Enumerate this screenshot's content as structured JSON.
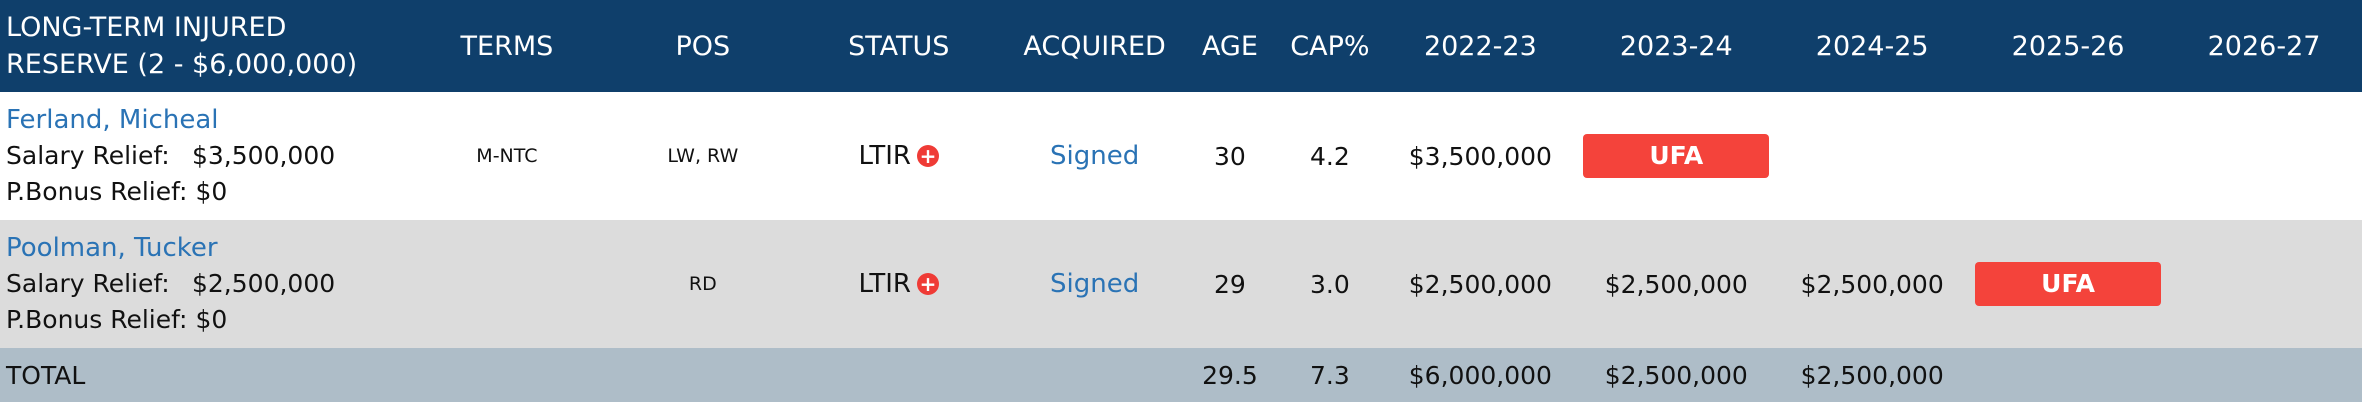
{
  "header": {
    "player_line1": "LONG-TERM INJURED",
    "player_line2": "RESERVE (2 - $6,000,000)",
    "terms": "TERMS",
    "pos": "POS",
    "status": "STATUS",
    "acquired": "ACQUIRED",
    "age": "AGE",
    "cap": "CAP%",
    "seasons": [
      "2022-23",
      "2023-24",
      "2024-25",
      "2025-26",
      "2026-27"
    ]
  },
  "rows": [
    {
      "name": "Ferland, Micheal",
      "salary_label": "Salary Relief:",
      "salary_value": "$3,500,000",
      "bonus_label": "P.Bonus Relief:",
      "bonus_value": "$0",
      "terms": "M-NTC",
      "pos": "LW, RW",
      "status": "LTIR",
      "status_icon": "plus-icon",
      "acquired": "Signed",
      "age": "30",
      "cap": "4.2",
      "seasons": [
        "$3,500,000",
        "UFA",
        "",
        "",
        ""
      ]
    },
    {
      "name": "Poolman, Tucker",
      "salary_label": "Salary Relief:",
      "salary_value": "$2,500,000",
      "bonus_label": "P.Bonus Relief:",
      "bonus_value": "$0",
      "terms": "",
      "pos": "RD",
      "status": "LTIR",
      "status_icon": "plus-icon",
      "acquired": "Signed",
      "age": "29",
      "cap": "3.0",
      "seasons": [
        "$2,500,000",
        "$2,500,000",
        "$2,500,000",
        "UFA",
        ""
      ]
    }
  ],
  "total": {
    "label": "TOTAL",
    "age": "29.5",
    "cap": "7.3",
    "seasons": [
      "$6,000,000",
      "$2,500,000",
      "$2,500,000",
      "",
      ""
    ]
  },
  "colors": {
    "header_bg": "#0f3f6b",
    "link": "#2a73b5",
    "ufa_badge": "#f4433b",
    "total_bg": "#aebdc8"
  }
}
